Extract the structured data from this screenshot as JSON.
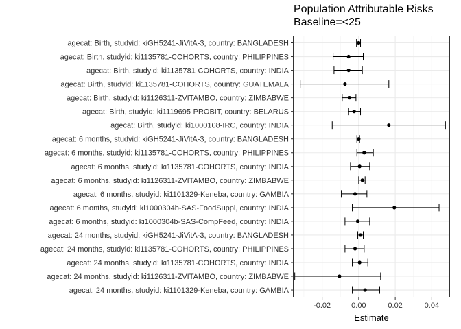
{
  "chart_data": {
    "type": "forest",
    "title": "Population Attributable Risks",
    "subtitle": "Baseline=<25",
    "xlabel": "Estimate",
    "ylabel": "",
    "xlim": [
      -0.036,
      0.05
    ],
    "xticks": [
      -0.02,
      0.0,
      0.02,
      0.04
    ],
    "xtick_labels": [
      "-0.02",
      "0.00",
      "0.02",
      "0.04"
    ],
    "grid": true,
    "rows": [
      {
        "label": "agecat: Birth, studyid: kiGH5241-JiVitA-3, country: BANGLADESH",
        "estimate": 0.0,
        "lower": -0.0012,
        "upper": 0.001
      },
      {
        "label": "agecat: Birth, studyid: ki1135781-COHORTS, country: PHILIPPINES",
        "estimate": -0.0055,
        "lower": -0.014,
        "upper": 0.0025
      },
      {
        "label": "agecat: Birth, studyid: ki1135781-COHORTS, country: INDIA",
        "estimate": -0.0055,
        "lower": -0.0135,
        "upper": 0.002
      },
      {
        "label": "agecat: Birth, studyid: ki1135781-COHORTS, country: GUATEMALA",
        "estimate": -0.0075,
        "lower": -0.032,
        "upper": 0.0165
      },
      {
        "label": "agecat: Birth, studyid: ki1126311-ZVITAMBO, country: ZIMBABWE",
        "estimate": -0.005,
        "lower": -0.009,
        "upper": -0.0015
      },
      {
        "label": "agecat: Birth, studyid: ki1119695-PROBIT, country: BELARUS",
        "estimate": -0.0025,
        "lower": -0.0055,
        "upper": 0.001
      },
      {
        "label": "agecat: Birth, studyid: ki1000108-IRC, country: INDIA",
        "estimate": 0.0165,
        "lower": -0.0145,
        "upper": 0.0475
      },
      {
        "label": "agecat: 6 months, studyid: kiGH5241-JiVitA-3, country: BANGLADESH",
        "estimate": 0.0,
        "lower": -0.001,
        "upper": 0.0005
      },
      {
        "label": "agecat: 6 months, studyid: ki1135781-COHORTS, country: PHILIPPINES",
        "estimate": 0.003,
        "lower": -0.001,
        "upper": 0.008
      },
      {
        "label": "agecat: 6 months, studyid: ki1135781-COHORTS, country: INDIA",
        "estimate": 0.0005,
        "lower": -0.0045,
        "upper": 0.006
      },
      {
        "label": "agecat: 6 months, studyid: ki1126311-ZVITAMBO, country: ZIMBABWE",
        "estimate": 0.002,
        "lower": 0.0,
        "upper": 0.0035
      },
      {
        "label": "agecat: 6 months, studyid: ki1101329-Keneba, country: GAMBIA",
        "estimate": -0.002,
        "lower": -0.0095,
        "upper": 0.0045
      },
      {
        "label": "agecat: 6 months, studyid: ki1000304b-SAS-FoodSuppl, country: INDIA",
        "estimate": 0.0195,
        "lower": -0.0035,
        "upper": 0.044
      },
      {
        "label": "agecat: 6 months, studyid: ki1000304b-SAS-CompFeed, country: INDIA",
        "estimate": -0.0005,
        "lower": -0.0075,
        "upper": 0.006
      },
      {
        "label": "agecat: 24 months, studyid: kiGH5241-JiVitA-3, country: BANGLADESH",
        "estimate": 0.001,
        "lower": -0.0005,
        "upper": 0.0025
      },
      {
        "label": "agecat: 24 months, studyid: ki1135781-COHORTS, country: PHILIPPINES",
        "estimate": -0.002,
        "lower": -0.0075,
        "upper": 0.003
      },
      {
        "label": "agecat: 24 months, studyid: ki1135781-COHORTS, country: INDIA",
        "estimate": 0.0005,
        "lower": -0.0035,
        "upper": 0.005
      },
      {
        "label": "agecat: 24 months, studyid: ki1126311-ZVITAMBO, country: ZIMBABWE",
        "estimate": -0.0105,
        "lower": -0.035,
        "upper": 0.012
      },
      {
        "label": "agecat: 24 months, studyid: ki1101329-Keneba, country: GAMBIA",
        "estimate": 0.0035,
        "lower": -0.0035,
        "upper": 0.0115
      }
    ]
  }
}
